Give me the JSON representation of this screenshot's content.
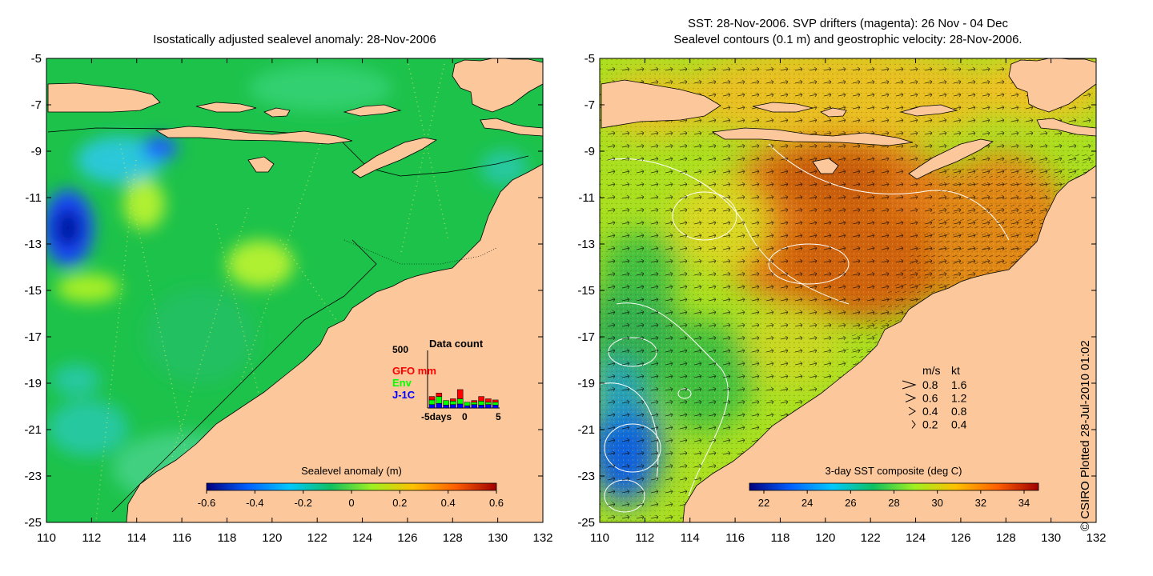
{
  "left_panel": {
    "title": "Isostatically adjusted sealevel anomaly: 28-Nov-2006",
    "colorbar": {
      "title": "Sealevel anomaly (m)",
      "ticks": [
        "-0.6",
        "-0.4",
        "-0.2",
        "0",
        "0.2",
        "0.4",
        "0.6"
      ],
      "colors": [
        "#00007f",
        "#0060ff",
        "#00c8ff",
        "#10c060",
        "#a0f020",
        "#ffc000",
        "#ff6000",
        "#a00000"
      ]
    },
    "inset": {
      "title": "Data count",
      "ymax_label": "500",
      "legend": [
        {
          "label": "GFO mm",
          "color": "#ff0000"
        },
        {
          "label": "Env",
          "color": "#00ff00"
        },
        {
          "label": "J-1C",
          "color": "#0000ff"
        }
      ],
      "x_labels": [
        "-5days",
        "0",
        "5"
      ],
      "bars": [
        {
          "j1c": 30,
          "env": 40,
          "gfo": 30
        },
        {
          "j1c": 40,
          "env": 60,
          "gfo": 30
        },
        {
          "j1c": 25,
          "env": 40,
          "gfo": 0
        },
        {
          "j1c": 30,
          "env": 30,
          "gfo": 20
        },
        {
          "j1c": 35,
          "env": 45,
          "gfo": 80
        },
        {
          "j1c": 20,
          "env": 30,
          "gfo": 0
        },
        {
          "j1c": 30,
          "env": 20,
          "gfo": 15
        },
        {
          "j1c": 25,
          "env": 35,
          "gfo": 40
        },
        {
          "j1c": 30,
          "env": 20,
          "gfo": 30
        },
        {
          "j1c": 25,
          "env": 25,
          "gfo": 20
        }
      ]
    }
  },
  "right_panel": {
    "title_line1": "SST: 28-Nov-2006. SVP drifters (magenta): 26 Nov - 04 Dec",
    "title_line2": "Sealevel contours (0.1 m) and geostrophic velocity: 28-Nov-2006.",
    "colorbar": {
      "title": "3-day SST composite (deg C)",
      "ticks": [
        "22",
        "24",
        "26",
        "28",
        "30",
        "32",
        "34"
      ],
      "colors": [
        "#00007f",
        "#0060ff",
        "#00c8ff",
        "#10c060",
        "#a0f020",
        "#ffc000",
        "#ff6000",
        "#a00000"
      ]
    },
    "velocity_key": {
      "header_ms": "m/s",
      "header_kt": "kt",
      "rows": [
        {
          "ms": "0.8",
          "kt": "1.6"
        },
        {
          "ms": "0.6",
          "kt": "1.2"
        },
        {
          "ms": "0.4",
          "kt": "0.8"
        },
        {
          "ms": "0.2",
          "kt": "0.4"
        }
      ]
    }
  },
  "axes": {
    "x_ticks": [
      "110",
      "112",
      "114",
      "116",
      "118",
      "120",
      "122",
      "124",
      "126",
      "128",
      "130",
      "132"
    ],
    "y_ticks": [
      "-5",
      "-7",
      "-9",
      "-11",
      "-13",
      "-15",
      "-17",
      "-19",
      "-21",
      "-23",
      "-25"
    ]
  },
  "credit": "© CSIRO Plotted 28-Jul-2010 01:02"
}
